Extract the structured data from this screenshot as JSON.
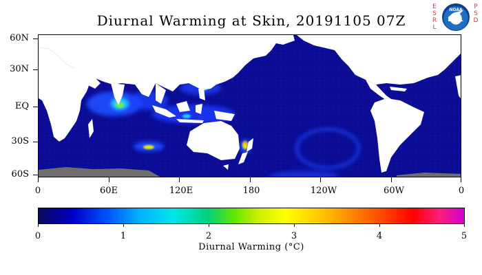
{
  "title": "Diurnal Warming at Skin, 20191105 07Z",
  "logo": {
    "letters_left": [
      "E",
      "S",
      "R",
      "L"
    ],
    "letters_right": [
      "P",
      "S",
      "D"
    ],
    "seal_text": "NOAA"
  },
  "y_axis_ticks": [
    "60N",
    "30N",
    "EQ",
    "30S",
    "60S"
  ],
  "x_axis_ticks": [
    "0",
    "60E",
    "120E",
    "180",
    "120W",
    "60W",
    "0"
  ],
  "colorbar": {
    "ticks": [
      "0",
      "1",
      "2",
      "3",
      "4",
      "5"
    ],
    "label": "Diurnal Warming (°C)",
    "colors": [
      "#0a0a5a",
      "#0000c8",
      "#0050ff",
      "#00b4ff",
      "#00e6e6",
      "#00d278",
      "#64e600",
      "#d2f000",
      "#ffff00",
      "#ffc800",
      "#ff8200",
      "#ff3c00",
      "#ff0000",
      "#ff1e78",
      "#d200d2"
    ]
  },
  "map_colors": {
    "ocean": "#0a0a8c",
    "land": "#ffffff",
    "ice": "#6e6e6e"
  },
  "chart_data": {
    "type": "heatmap",
    "title": "Diurnal Warming at Skin, 20191105 07Z",
    "x_range_lon": [
      0,
      360
    ],
    "y_range_lat": [
      -60,
      60
    ],
    "value_range": [
      0,
      5
    ],
    "units": "°C",
    "hotspots": [
      {
        "lon": 88,
        "lat": 5,
        "value": 2.5
      },
      {
        "lon": 93,
        "lat": -25,
        "value": 2.8
      },
      {
        "lon": 172,
        "lat": -28,
        "value": 3.2
      },
      {
        "lon": 128,
        "lat": -5,
        "value": 2.0
      },
      {
        "lon": 140,
        "lat": 15,
        "value": 1.8
      }
    ]
  }
}
